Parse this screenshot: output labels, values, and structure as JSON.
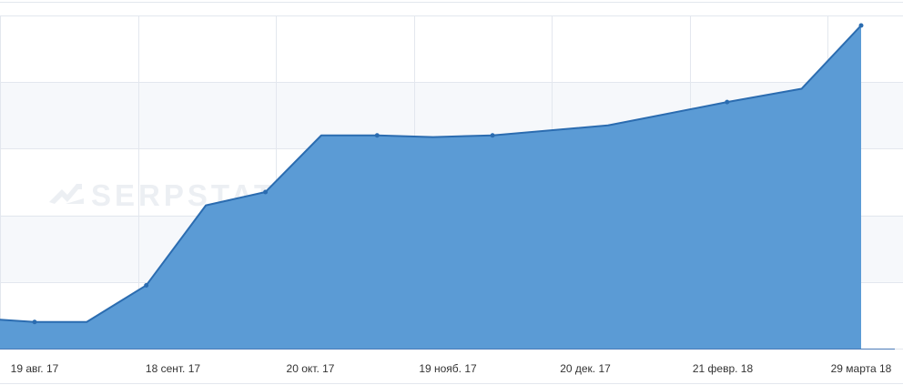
{
  "chart_data": {
    "type": "area",
    "title": "",
    "xlabel": "",
    "ylabel": "",
    "grid": true,
    "legend": "none",
    "colors": {
      "fill": "#5b9bd5",
      "line": "#2b6cb0",
      "band": "#f6f8fb",
      "grid": "#e3e7ee",
      "axis": "#4a7ab8"
    },
    "ylim": [
      0,
      100
    ],
    "x_tick_labels": [
      "19 авг. 17",
      "18 сент. 17",
      "20 окт. 17",
      "19 нояб. 17",
      "20 дек. 17",
      "21 февр. 18",
      "29 марта 18"
    ],
    "series": [
      {
        "x": [
          "2017-08-05",
          "2017-08-19",
          "2017-09-02",
          "2017-09-18",
          "2017-10-04",
          "2017-10-20",
          "2017-11-04",
          "2017-11-19",
          "2017-12-04",
          "2017-12-20",
          "2018-01-20",
          "2018-02-21",
          "2018-03-13",
          "2018-03-29"
        ],
        "values": [
          9,
          8,
          8,
          19,
          43,
          47,
          64,
          64,
          63.5,
          64,
          67,
          74,
          78,
          97
        ]
      }
    ]
  },
  "watermark": {
    "text": "SERPSTAT",
    "icon": "serpstat-logo-icon"
  }
}
